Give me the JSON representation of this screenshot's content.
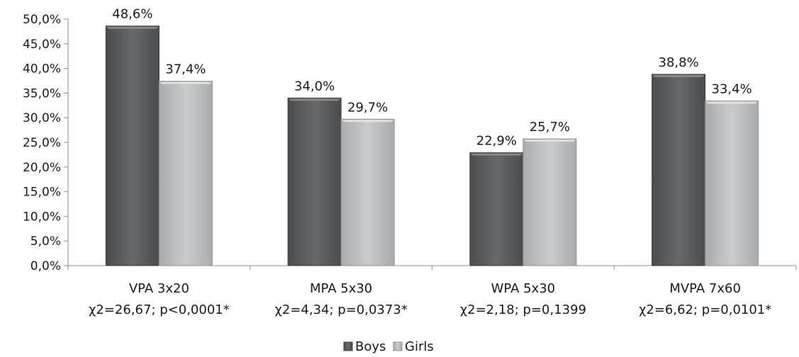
{
  "chart_data": {
    "type": "bar",
    "categories": [
      {
        "name": "VPA 3x20",
        "stat": "χ2=26,67; p<0,0001*"
      },
      {
        "name": "MPA 5x30",
        "stat": "χ2=4,34; p=0,0373*"
      },
      {
        "name": "WPA 5x30",
        "stat": "χ2=2,18; p=0,1399"
      },
      {
        "name": "MVPA 7x60",
        "stat": "χ2=6,62; p=0,0101*"
      }
    ],
    "series": [
      {
        "name": "Boys",
        "color": "#5f6163",
        "values": [
          48.6,
          34.0,
          22.9,
          38.8
        ],
        "labels": [
          "48,6%",
          "34,0%",
          "22,9%",
          "38,8%"
        ]
      },
      {
        "name": "Girls",
        "color": "#b9bbbd",
        "values": [
          37.4,
          29.7,
          25.7,
          33.4
        ],
        "labels": [
          "37,4%",
          "29,7%",
          "25,7%",
          "33,4%"
        ]
      }
    ],
    "y_ticks": [
      "0,0%",
      "5,0%",
      "10,0%",
      "15,0%",
      "20,0%",
      "25,0%",
      "30,0%",
      "35,0%",
      "40,0%",
      "45,0%",
      "50,0%"
    ],
    "ylim": [
      0,
      50
    ],
    "grid": false,
    "legend_position": "bottom-center"
  }
}
